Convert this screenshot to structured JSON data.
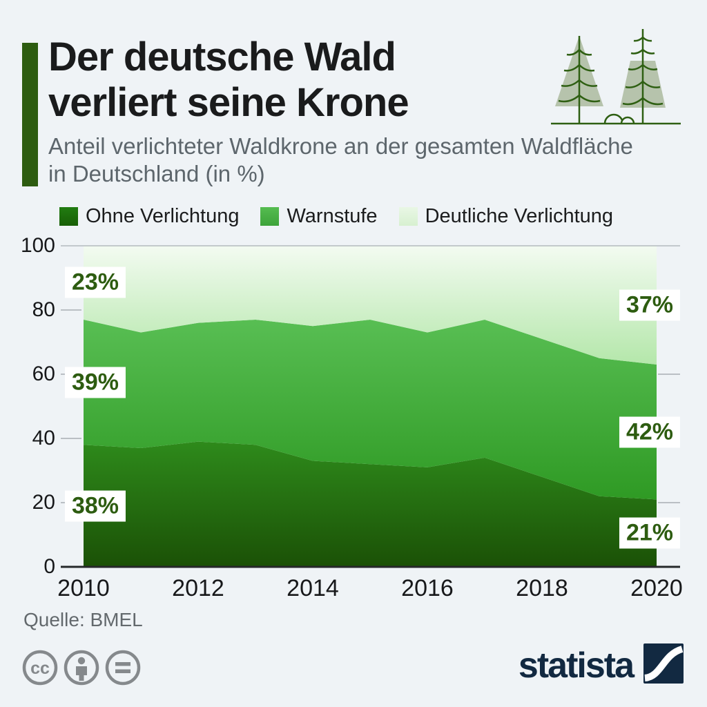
{
  "header": {
    "title_line1": "Der deutsche Wald",
    "title_line2": "verliert seine Krone",
    "subtitle_line1": "Anteil verlichteter Waldkrone an der gesamten Waldfläche",
    "subtitle_line2": "in Deutschland (in %)",
    "accent_color": "#2d5c10"
  },
  "legend": [
    {
      "label": "Ohne Verlichtung",
      "colors": [
        "#217c11",
        "#185f06"
      ]
    },
    {
      "label": "Warnstufe",
      "colors": [
        "#55bc50",
        "#3da33a"
      ]
    },
    {
      "label": "Deutliche Verlichtung",
      "colors": [
        "#e9f7e5",
        "#d7f0d0"
      ]
    }
  ],
  "chart_data": {
    "type": "area",
    "stacked": true,
    "x": [
      2010,
      2011,
      2012,
      2013,
      2014,
      2015,
      2016,
      2017,
      2018,
      2019,
      2020
    ],
    "series": [
      {
        "name": "Ohne Verlichtung",
        "values": [
          38,
          37,
          39,
          38,
          33,
          32,
          31,
          34,
          28,
          22,
          21
        ],
        "gradient": [
          "#2e8a1b",
          "#1b5106"
        ]
      },
      {
        "name": "Warnstufe",
        "values": [
          39,
          36,
          37,
          39,
          42,
          45,
          42,
          43,
          43,
          43,
          42
        ],
        "gradient": [
          "#58be53",
          "#2f9a24"
        ]
      },
      {
        "name": "Deutliche Verlichtung",
        "values": [
          23,
          27,
          24,
          23,
          25,
          23,
          27,
          23,
          29,
          35,
          37
        ],
        "gradient": [
          "#f3fbf1",
          "#b4e7aa"
        ]
      }
    ],
    "ylim": [
      0,
      100
    ],
    "yticks": [
      0,
      20,
      40,
      60,
      80,
      100
    ],
    "xticks": [
      2010,
      2012,
      2014,
      2016,
      2018,
      2020
    ],
    "point_labels": {
      "start": [
        "38%",
        "39%",
        "23%"
      ],
      "end": [
        "21%",
        "42%",
        "37%"
      ]
    },
    "grid_top_color": "#b3b9bd",
    "tick_color": "#a8aeb3",
    "baseline_color": "#26282a",
    "label_text_color": "#2d5c10"
  },
  "footer": {
    "source": "Quelle: BMEL",
    "brand": "statista",
    "brand_color": "#122941",
    "cc_color": "#85898c"
  }
}
